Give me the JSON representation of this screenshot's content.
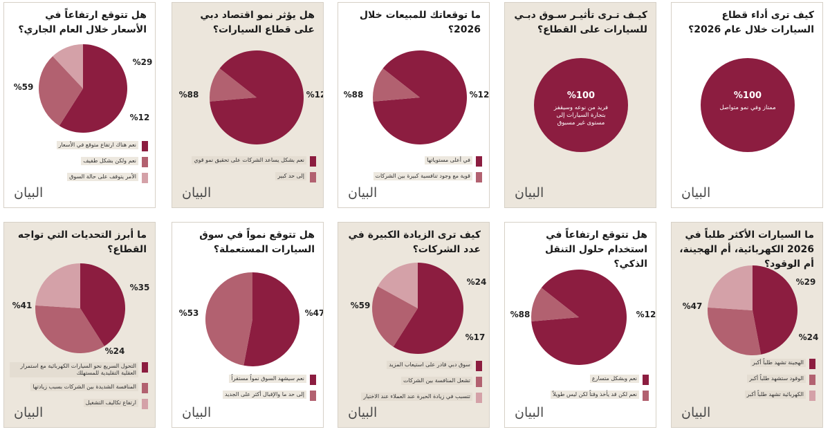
{
  "logo_text": "البيان",
  "colors": {
    "dark": "#8c1d40",
    "mid": "#b26170",
    "light": "#d4a1a8"
  },
  "chart_data": [
    {
      "type": "pie",
      "title": "كيف ترى أداء قطاع السيارات خلال عام 2026؟",
      "slices": [
        {
          "label": "ممتاز وفي نمو متواصل",
          "value": 100,
          "color": "#8c1d40"
        }
      ],
      "value_labels": [
        "%100"
      ],
      "center_note": "ممتاز وفي نمو متواصل",
      "legend": false
    },
    {
      "type": "pie",
      "title": "كيـف تـرى تأثيـر سـوق دبـي للسيارات على القطاع؟",
      "slices": [
        {
          "label": "فريد من نوعه وسيقفز بتجارة السيارات إلى مستوى غير مسبوق",
          "value": 100,
          "color": "#8c1d40"
        }
      ],
      "value_labels": [
        "%100"
      ],
      "center_note": "فريد من نوعه وسيقفز بتجارة السيارات إلى مستوى غير مسبوق",
      "legend": false
    },
    {
      "type": "pie",
      "title": "ما توقعاتك للمبيعات خلال 2026؟",
      "slices": [
        {
          "label": "في أعلى مستوياتها",
          "value": 88,
          "color": "#8c1d40"
        },
        {
          "label": "قوية مع وجود تنافسية كبيرة بين الشركات",
          "value": 12,
          "color": "#b26170"
        }
      ],
      "value_labels": [
        "%88",
        "%12"
      ],
      "legend": true
    },
    {
      "type": "pie",
      "title": "هل يؤثر نمو اقتصاد دبي على قطاع السيارات؟",
      "slices": [
        {
          "label": "نعم بشكل يساعد الشركات على تحقيق نمو قوي",
          "value": 88,
          "color": "#8c1d40"
        },
        {
          "label": "إلى حد كبير",
          "value": 12,
          "color": "#b26170"
        }
      ],
      "value_labels": [
        "%88",
        "%12"
      ],
      "legend": true
    },
    {
      "type": "pie",
      "title": "هل تتوقع ارتفاعاً في الأسعار خلال العام الجاري؟",
      "slices": [
        {
          "label": "نعم هناك ارتفاع متوقع في الأسعار",
          "value": 59,
          "color": "#8c1d40"
        },
        {
          "label": "نعم ولكن بشكل طفيف",
          "value": 29,
          "color": "#b26170"
        },
        {
          "label": "الأمر يتوقف على حالة السوق",
          "value": 12,
          "color": "#d4a1a8"
        }
      ],
      "value_labels": [
        "%59",
        "%29",
        "%12"
      ],
      "legend": true
    },
    {
      "type": "pie",
      "title": "ما السيارات الأكثر طلباً في 2026 الكهربائية، أم الهجينة، أم الوقود؟",
      "slices": [
        {
          "label": "الهجينة تشهد طلباً أكبر",
          "value": 47,
          "color": "#8c1d40"
        },
        {
          "label": "الوقود ستشهد طلباً أكبر",
          "value": 29,
          "color": "#b26170"
        },
        {
          "label": "الكهربائية تشهد طلباً أكبر",
          "value": 24,
          "color": "#d4a1a8"
        }
      ],
      "value_labels": [
        "%47",
        "%29",
        "%24"
      ],
      "legend": true
    },
    {
      "type": "pie",
      "title": "هل تتوقع ارتفاعاً في استخدام حلول التنقل الذكي؟",
      "slices": [
        {
          "label": "نعم وبشكل متسارع",
          "value": 88,
          "color": "#8c1d40"
        },
        {
          "label": "نعم لكن قد يأخذ وقتاً لكن ليس طويلاً",
          "value": 12,
          "color": "#b26170"
        }
      ],
      "value_labels": [
        "%88",
        "%12"
      ],
      "legend": true
    },
    {
      "type": "pie",
      "title": "كيف ترى الزيادة الكبيرة في عدد الشركات؟",
      "slices": [
        {
          "label": "سوق دبي قادر على استيعاب المزيد",
          "value": 59,
          "color": "#8c1d40"
        },
        {
          "label": "تشعل المنافسة بين الشركات",
          "value": 24,
          "color": "#b26170"
        },
        {
          "label": "تتسبب في زيادة الحيرة عند العملاء عند الاختيار",
          "value": 17,
          "color": "#d4a1a8"
        }
      ],
      "value_labels": [
        "%59",
        "%24",
        "%17"
      ],
      "legend": true
    },
    {
      "type": "pie",
      "title": "هل تتوقع نمواً في سوق السيارات المستعملة؟",
      "slices": [
        {
          "label": "نعم سيشهد السوق نمواً مستقراً",
          "value": 53,
          "color": "#8c1d40"
        },
        {
          "label": "إلى حد ما والإقبال أكثر على الجديد",
          "value": 47,
          "color": "#b26170"
        }
      ],
      "value_labels": [
        "%53",
        "%47"
      ],
      "legend": true
    },
    {
      "type": "pie",
      "title": "ما أبرز التحديات التي تواجه القطاع؟",
      "slices": [
        {
          "label": "التحول السريع نحو السيارات الكهربائية مع استمرار العقلية التقليدية للمستهلك",
          "value": 41,
          "color": "#8c1d40"
        },
        {
          "label": "المنافسة الشديدة بين الشركات بسبب زيادتها",
          "value": 35,
          "color": "#b26170"
        },
        {
          "label": "ارتفاع تكاليف التشغيل",
          "value": 24,
          "color": "#d4a1a8"
        }
      ],
      "value_labels": [
        "%41",
        "%35",
        "%24"
      ],
      "legend": true
    }
  ]
}
